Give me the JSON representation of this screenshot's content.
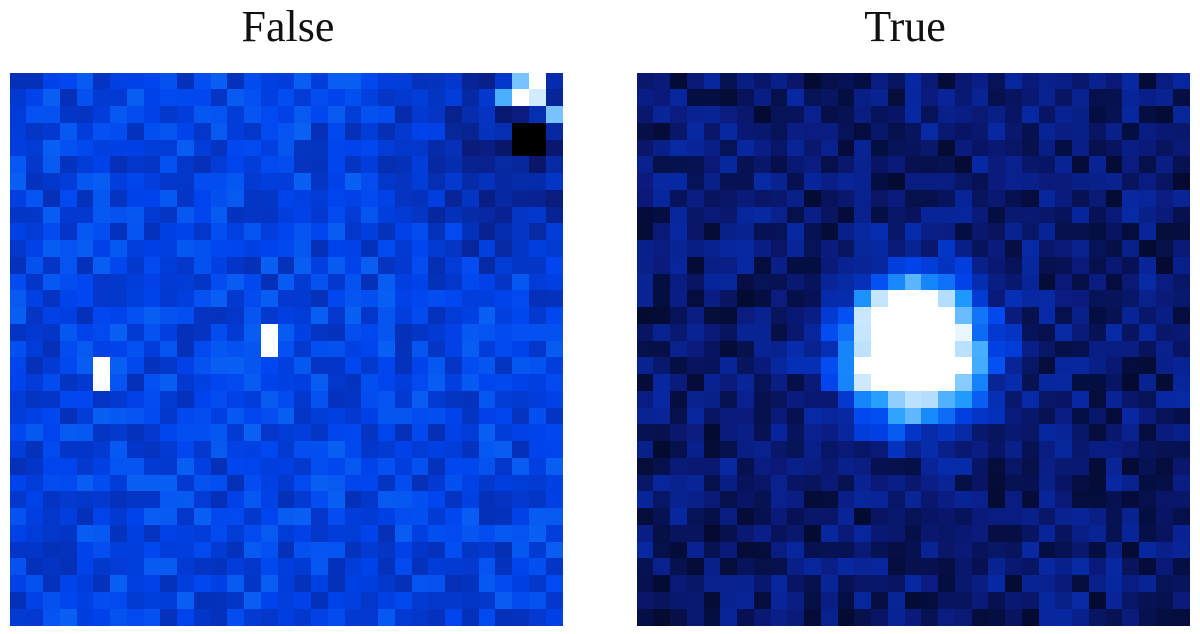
{
  "panels": [
    {
      "title": "False",
      "grid_size": 33,
      "colormap": [
        "#000000",
        "#0a1a7a",
        "#0044ee",
        "#1e9bff",
        "#ffffff"
      ],
      "background_level": 0.48,
      "noise_amplitude": 0.1,
      "features": [
        {
          "kind": "bright-pixel",
          "row": 17,
          "col": 5,
          "level": 1.0
        },
        {
          "kind": "bright-pixel",
          "row": 18,
          "col": 5,
          "level": 1.0
        },
        {
          "kind": "bright-pixel",
          "row": 15,
          "col": 15,
          "level": 1.0
        },
        {
          "kind": "bright-pixel",
          "row": 16,
          "col": 15,
          "level": 1.0
        },
        {
          "kind": "dark-patch",
          "row": 3,
          "col": 30,
          "level": 0.0
        },
        {
          "kind": "dark-patch",
          "row": 3,
          "col": 31,
          "level": 0.0
        },
        {
          "kind": "dark-patch",
          "row": 4,
          "col": 30,
          "level": 0.0
        },
        {
          "kind": "dark-patch",
          "row": 4,
          "col": 31,
          "level": 0.0
        },
        {
          "kind": "bright-corner",
          "row": 0,
          "col": 31,
          "level": 1.0
        },
        {
          "kind": "bright-corner",
          "row": 1,
          "col": 30,
          "level": 1.0
        },
        {
          "kind": "bright-corner",
          "row": 1,
          "col": 31,
          "level": 0.95
        },
        {
          "kind": "bright-corner",
          "row": 1,
          "col": 29,
          "level": 0.8
        },
        {
          "kind": "bright-corner",
          "row": 2,
          "col": 32,
          "level": 0.85
        },
        {
          "kind": "bright-corner",
          "row": 0,
          "col": 30,
          "level": 0.85
        }
      ]
    },
    {
      "title": "True",
      "grid_size": 33,
      "colormap": [
        "#000000",
        "#0a1a7a",
        "#0044ee",
        "#1e9bff",
        "#ffffff"
      ],
      "background_level": 0.22,
      "noise_amplitude": 0.12,
      "source": {
        "row": 16,
        "col": 16,
        "radius_pixels": 2.6,
        "peak_level": 1.0
      }
    }
  ]
}
